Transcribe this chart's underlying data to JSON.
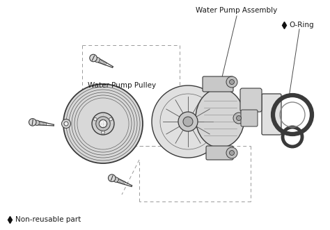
{
  "bg_color": "#ffffff",
  "labels": {
    "water_pump_assembly": "Water Pump Assembly",
    "o_ring": "O-Ring",
    "water_pump_pulley": "Water Pump Pulley",
    "non_reusable": "Non-reusable part"
  },
  "colors": {
    "line": "#4a4a4a",
    "dashed": "#999999",
    "text": "#1a1a1a",
    "part_fill": "#e8e8e8",
    "part_edge": "#3a3a3a",
    "part_dark": "#b0b0b0",
    "part_light": "#f0f0f0"
  },
  "font_size": 7.5,
  "font_size_small": 6.5
}
